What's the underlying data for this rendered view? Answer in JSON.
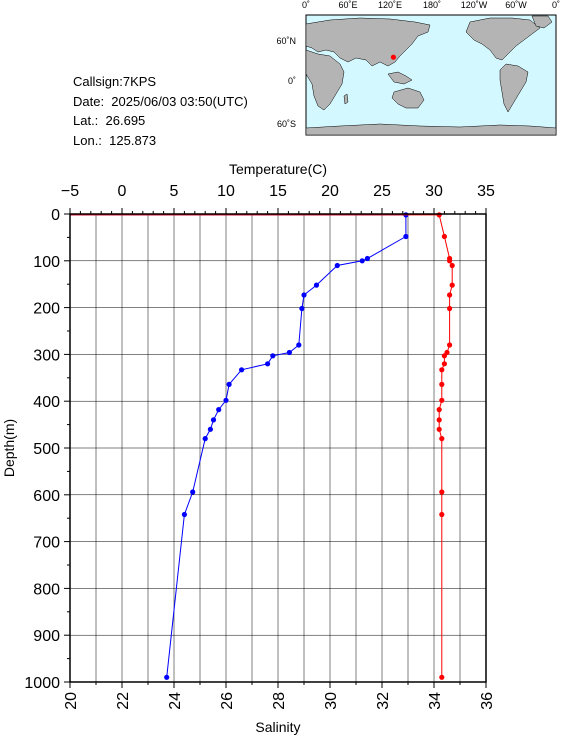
{
  "info": {
    "callsign": "Callsign:7KPS",
    "date": "Date:  2025/06/03 03:50(UTC)",
    "lat": "Lat.:  26.695",
    "lon": "Lon.:  125.873"
  },
  "map": {
    "top_labels": [
      "0˚",
      "60˚E",
      "120˚E",
      "180˚",
      "120˚W",
      "60˚W",
      "0˚"
    ],
    "side_labels": [
      "60˚N",
      "0˚",
      "60˚S"
    ],
    "station": {
      "lon": 125.873,
      "lat": 26.695
    },
    "colors": {
      "ocean": "#d4f8ff",
      "land": "#b4b4b4",
      "marker": "#ff0000"
    }
  },
  "chart_data": {
    "type": "line",
    "top_axis_label": "Temperature(C)",
    "bottom_axis_label": "Salinity",
    "ylabel": "Depth(m)",
    "temperature_range": [
      -5,
      35
    ],
    "temperature_ticks": [
      "−5",
      "0",
      "5",
      "10",
      "15",
      "20",
      "25",
      "30",
      "35"
    ],
    "salinity_range": [
      20,
      36
    ],
    "salinity_ticks": [
      "20",
      "22",
      "24",
      "26",
      "28",
      "30",
      "32",
      "34",
      "36"
    ],
    "depth_range": [
      0,
      1000
    ],
    "depth_ticks": [
      "0",
      "100",
      "200",
      "300",
      "400",
      "500",
      "600",
      "700",
      "800",
      "900",
      "1000"
    ],
    "grid": true,
    "series": [
      {
        "color": "#0000ff",
        "axis": "temperature",
        "points": [
          [
            27.3,
            2
          ],
          [
            27.3,
            48
          ],
          [
            23.6,
            95
          ],
          [
            23.1,
            100
          ],
          [
            20.7,
            110
          ],
          [
            18.7,
            152
          ],
          [
            17.5,
            173
          ],
          [
            17.3,
            202
          ],
          [
            17.0,
            280
          ],
          [
            16.1,
            296
          ],
          [
            14.5,
            303
          ],
          [
            14.0,
            320
          ],
          [
            11.5,
            333
          ],
          [
            10.3,
            364
          ],
          [
            10.0,
            398
          ],
          [
            9.3,
            418
          ],
          [
            8.8,
            440
          ],
          [
            8.5,
            460
          ],
          [
            8.0,
            480
          ],
          [
            6.8,
            594
          ],
          [
            6.0,
            642
          ],
          [
            4.3,
            990
          ]
        ]
      },
      {
        "color": "#ff0000",
        "axis": "salinity",
        "points": [
          [
            34.2,
            2
          ],
          [
            34.4,
            48
          ],
          [
            34.6,
            95
          ],
          [
            34.6,
            100
          ],
          [
            34.7,
            110
          ],
          [
            34.7,
            152
          ],
          [
            34.6,
            173
          ],
          [
            34.6,
            202
          ],
          [
            34.6,
            280
          ],
          [
            34.5,
            296
          ],
          [
            34.4,
            303
          ],
          [
            34.4,
            320
          ],
          [
            34.3,
            333
          ],
          [
            34.3,
            364
          ],
          [
            34.3,
            398
          ],
          [
            34.2,
            418
          ],
          [
            34.2,
            440
          ],
          [
            34.2,
            460
          ],
          [
            34.3,
            480
          ],
          [
            34.3,
            594
          ],
          [
            34.3,
            642
          ],
          [
            34.3,
            990
          ]
        ]
      }
    ]
  }
}
